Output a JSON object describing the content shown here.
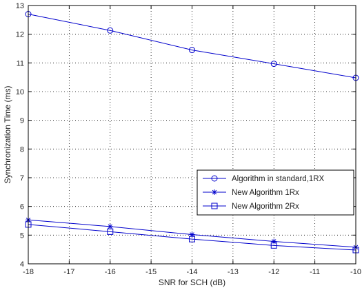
{
  "chart_data": {
    "type": "line",
    "title": "",
    "xlabel": "SNR for SCH (dB)",
    "ylabel": "Synchronization Time (ms)",
    "xlim": [
      -18,
      -10
    ],
    "ylim": [
      4,
      13
    ],
    "xticks": [
      -18,
      -17,
      -16,
      -15,
      -14,
      -13,
      -12,
      -11,
      -10
    ],
    "yticks": [
      4,
      5,
      6,
      7,
      8,
      9,
      10,
      11,
      12,
      13
    ],
    "x": [
      -18,
      -16,
      -14,
      -12,
      -10
    ],
    "grid": true,
    "legend_position": "lower-right",
    "color": "#0000cc",
    "series": [
      {
        "name": "Algorithm in standard,1RX",
        "marker": "circle",
        "values": [
          12.7,
          12.13,
          11.45,
          10.97,
          10.48
        ]
      },
      {
        "name": "New Algorithm 1Rx",
        "marker": "star",
        "values": [
          5.53,
          5.3,
          5.02,
          4.78,
          4.58
        ]
      },
      {
        "name": "New Algorithm 2Rx",
        "marker": "square",
        "values": [
          5.37,
          5.12,
          4.86,
          4.64,
          4.48
        ]
      }
    ]
  }
}
